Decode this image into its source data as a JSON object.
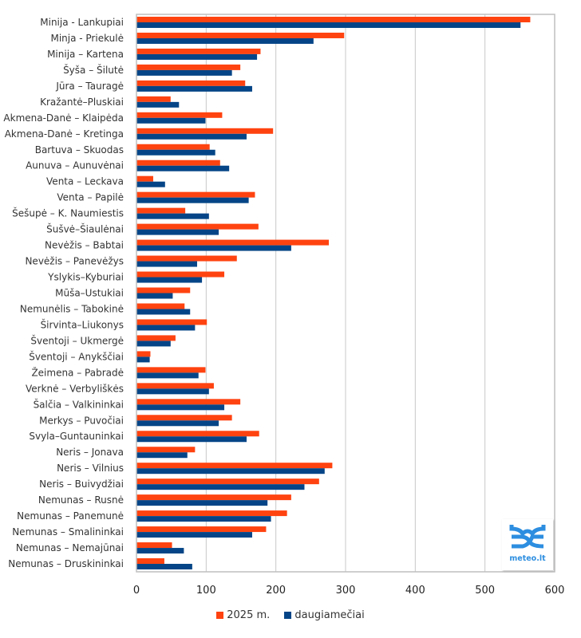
{
  "chart_data": {
    "type": "bar",
    "orientation": "horizontal",
    "title": "",
    "xlabel": "",
    "ylabel": "",
    "xlim": [
      0,
      600
    ],
    "xticks": [
      0,
      100,
      200,
      300,
      400,
      500,
      600
    ],
    "grid": true,
    "legend_position": "bottom",
    "categories": [
      "Minija - Lankupiai",
      "Minja - Priekulė",
      "Minija – Kartena",
      "Šyša – Šilutė",
      "Jūra – Tauragė",
      "Kražantė–Pluskiai",
      "Akmena-Danė – Klaipėda",
      "Akmena-Danė – Kretinga",
      "Bartuva – Skuodas",
      "Aunuva – Aunuvėnai",
      "Venta – Leckava",
      "Venta – Papilė",
      "Šešupė – K. Naumiestis",
      "Šušvė–Šiaulėnai",
      "Nevėžis – Babtai",
      "Nevėžis – Panevėžys",
      "Yslykis–Kyburiai",
      "Mūša–Ustukiai",
      "Nemunėlis – Tabokinė",
      "Širvinta–Liukonys",
      "Šventoji – Ukmergė",
      "Šventoji – Anykščiai",
      "Žeimena – Pabradė",
      "Verknė – Verbyliškės",
      "Šalčia – Valkininkai",
      "Merkys – Puvočiai",
      "Svyla–Guntauninkai",
      "Neris – Jonava",
      "Neris – Vilnius",
      "Neris – Buivydžiai",
      "Nemunas – Rusnė",
      "Nemunas – Panemunė",
      "Nemunas – Smalininkai",
      "Nemunas – Nemajūnai",
      "Nemunas – Druskininkai"
    ],
    "series": [
      {
        "name": "2025 m.",
        "color": "#ff4310",
        "values": [
          565,
          298,
          178,
          149,
          156,
          49,
          123,
          196,
          105,
          120,
          24,
          170,
          70,
          175,
          276,
          144,
          126,
          77,
          69,
          101,
          56,
          20,
          99,
          111,
          149,
          137,
          176,
          84,
          281,
          262,
          222,
          216,
          186,
          51,
          40
        ]
      },
      {
        "name": "daugiamečiai",
        "color": "#054587",
        "values": [
          551,
          254,
          173,
          137,
          166,
          61,
          99,
          158,
          113,
          133,
          41,
          161,
          104,
          118,
          222,
          87,
          94,
          52,
          77,
          84,
          49,
          19,
          89,
          104,
          126,
          118,
          158,
          73,
          270,
          241,
          188,
          193,
          166,
          68,
          80
        ]
      }
    ]
  },
  "logo": {
    "text": "meteo.lt",
    "color": "#2d8ee0"
  }
}
